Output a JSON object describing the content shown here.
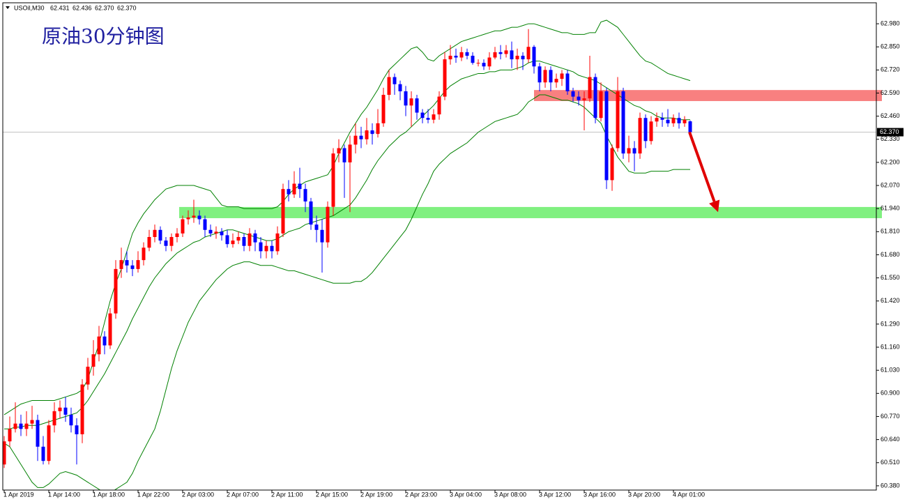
{
  "chart_data": {
    "type": "candlestick",
    "symbol": "USOil,M30",
    "quote": [
      "62.431",
      "62.436",
      "62.370",
      "62.370"
    ],
    "title": "原油30分钟图",
    "up_color": "#ff0000",
    "down_color": "#0000ff",
    "categories": [
      "1 Apr 2019",
      null,
      null,
      null,
      null,
      null,
      null,
      null,
      "1 Apr 14:00",
      null,
      null,
      null,
      null,
      null,
      null,
      null,
      "1 Apr 18:00",
      null,
      null,
      null,
      null,
      null,
      null,
      null,
      "1 Apr 22:00",
      null,
      null,
      null,
      null,
      null,
      null,
      null,
      "2 Apr 03:00",
      null,
      null,
      null,
      null,
      null,
      null,
      null,
      "2 Apr 07:00",
      null,
      null,
      null,
      null,
      null,
      null,
      null,
      "2 Apr 11:00",
      null,
      null,
      null,
      null,
      null,
      null,
      null,
      "2 Apr 15:00",
      null,
      null,
      null,
      null,
      null,
      null,
      null,
      "2 Apr 19:00",
      null,
      null,
      null,
      null,
      null,
      null,
      null,
      "2 Apr 23:00",
      null,
      null,
      null,
      null,
      null,
      null,
      null,
      "3 Apr 04:00",
      null,
      null,
      null,
      null,
      null,
      null,
      null,
      "3 Apr 08:00",
      null,
      null,
      null,
      null,
      null,
      null,
      null,
      "3 Apr 12:00",
      null,
      null,
      null,
      null,
      null,
      null,
      null,
      "3 Apr 16:00",
      null,
      null,
      null,
      null,
      null,
      null,
      null,
      "3 Apr 20:00",
      null,
      null,
      null,
      null,
      null,
      null,
      null,
      "4 Apr 01:00",
      null,
      null,
      null
    ],
    "open": [
      60.5,
      60.63,
      60.7,
      60.73,
      60.7,
      60.73,
      60.75,
      60.6,
      60.52,
      60.72,
      60.8,
      60.82,
      60.78,
      60.72,
      60.67,
      60.95,
      61.05,
      61.12,
      61.22,
      61.17,
      61.35,
      61.6,
      61.65,
      61.62,
      61.6,
      61.65,
      61.72,
      61.78,
      61.82,
      61.76,
      61.73,
      61.78,
      61.8,
      61.88,
      61.89,
      61.9,
      61.88,
      61.82,
      61.8,
      61.81,
      61.79,
      61.74,
      61.76,
      61.78,
      61.73,
      61.8,
      61.75,
      61.7,
      61.73,
      61.7,
      61.8,
      62.05,
      62.02,
      62.08,
      62.05,
      61.98,
      61.85,
      61.82,
      61.75,
      61.95,
      62.25,
      62.28,
      62.2,
      62.3,
      62.35,
      62.33,
      62.38,
      62.36,
      62.42,
      62.58,
      62.68,
      62.64,
      62.6,
      62.52,
      62.56,
      62.48,
      62.45,
      62.44,
      62.47,
      62.57,
      62.78,
      62.8,
      62.79,
      62.82,
      62.8,
      62.76,
      62.76,
      62.74,
      62.79,
      62.82,
      62.81,
      62.83,
      62.78,
      62.8,
      62.78,
      62.85,
      62.74,
      62.65,
      62.72,
      62.65,
      62.67,
      62.7,
      62.6,
      62.57,
      62.55,
      62.56,
      62.68,
      62.45,
      62.6,
      62.1,
      62.28,
      62.6,
      62.25,
      62.28,
      62.25,
      62.45,
      62.32,
      62.43,
      62.45,
      62.44,
      62.42,
      62.45,
      62.42,
      62.431
    ],
    "high": [
      60.66,
      60.77,
      60.85,
      60.78,
      60.8,
      60.83,
      60.78,
      60.66,
      60.75,
      60.85,
      60.86,
      60.88,
      60.82,
      60.76,
      60.98,
      61.1,
      61.2,
      61.28,
      61.25,
      61.38,
      61.65,
      61.72,
      61.7,
      61.65,
      61.7,
      61.75,
      61.82,
      61.85,
      61.84,
      61.78,
      61.8,
      61.83,
      61.9,
      61.93,
      61.99,
      61.93,
      61.9,
      61.85,
      61.84,
      61.83,
      61.82,
      61.8,
      61.81,
      61.8,
      61.83,
      61.82,
      61.78,
      61.76,
      61.76,
      61.84,
      62.08,
      62.1,
      62.15,
      62.17,
      62.08,
      62.0,
      61.9,
      61.88,
      61.98,
      62.28,
      62.33,
      62.3,
      62.35,
      62.42,
      62.4,
      62.45,
      62.42,
      62.5,
      62.62,
      62.72,
      62.7,
      62.66,
      62.63,
      62.6,
      62.58,
      62.5,
      62.5,
      62.5,
      62.6,
      62.82,
      62.86,
      62.84,
      62.85,
      62.84,
      62.82,
      62.78,
      62.78,
      62.82,
      62.85,
      62.86,
      62.86,
      62.88,
      62.84,
      62.82,
      62.95,
      62.86,
      62.76,
      62.74,
      62.74,
      62.7,
      62.72,
      62.72,
      62.62,
      62.6,
      62.6,
      62.8,
      62.7,
      62.65,
      62.62,
      62.3,
      62.68,
      62.62,
      62.35,
      62.32,
      62.48,
      62.47,
      62.46,
      62.48,
      62.48,
      62.5,
      62.47,
      62.48,
      62.46,
      62.436
    ],
    "low": [
      60.48,
      60.6,
      60.68,
      60.66,
      60.66,
      60.7,
      60.52,
      60.5,
      60.5,
      60.68,
      60.76,
      60.74,
      60.68,
      60.5,
      60.62,
      60.92,
      61.0,
      61.08,
      61.12,
      61.15,
      61.32,
      61.55,
      61.58,
      61.56,
      61.58,
      61.62,
      61.7,
      61.75,
      61.74,
      61.7,
      61.7,
      61.75,
      61.78,
      61.85,
      61.86,
      61.85,
      61.78,
      61.78,
      61.77,
      61.76,
      61.72,
      61.72,
      61.74,
      61.7,
      61.7,
      61.7,
      61.66,
      61.66,
      61.66,
      61.68,
      61.78,
      61.98,
      62.0,
      62.0,
      61.92,
      61.82,
      61.75,
      61.58,
      61.72,
      61.9,
      62.2,
      62.0,
      61.92,
      62.25,
      62.28,
      62.3,
      62.3,
      62.34,
      62.4,
      62.55,
      62.58,
      62.55,
      62.46,
      62.4,
      62.44,
      62.42,
      62.42,
      62.42,
      62.44,
      62.55,
      62.75,
      62.76,
      62.77,
      62.78,
      62.75,
      62.74,
      62.72,
      62.72,
      62.78,
      62.78,
      62.79,
      62.73,
      62.72,
      62.72,
      62.76,
      62.7,
      62.6,
      62.62,
      62.6,
      62.62,
      62.63,
      62.58,
      62.54,
      62.52,
      62.38,
      62.54,
      62.42,
      62.43,
      62.05,
      62.04,
      62.26,
      62.22,
      62.2,
      62.15,
      62.22,
      62.28,
      62.3,
      62.4,
      62.4,
      62.4,
      62.4,
      62.39,
      62.4,
      62.37
    ],
    "close": [
      60.63,
      60.7,
      60.73,
      60.7,
      60.73,
      60.75,
      60.6,
      60.52,
      60.72,
      60.8,
      60.82,
      60.78,
      60.72,
      60.67,
      60.95,
      61.05,
      61.12,
      61.22,
      61.17,
      61.35,
      61.6,
      61.65,
      61.62,
      61.6,
      61.65,
      61.72,
      61.78,
      61.82,
      61.76,
      61.73,
      61.78,
      61.8,
      61.88,
      61.89,
      61.9,
      61.88,
      61.82,
      61.8,
      61.81,
      61.79,
      61.74,
      61.76,
      61.78,
      61.73,
      61.8,
      61.75,
      61.7,
      61.73,
      61.7,
      61.8,
      62.05,
      62.02,
      62.08,
      62.05,
      61.98,
      61.85,
      61.82,
      61.75,
      61.95,
      62.25,
      62.28,
      62.2,
      62.3,
      62.35,
      62.33,
      62.38,
      62.36,
      62.42,
      62.58,
      62.68,
      62.64,
      62.6,
      62.52,
      62.56,
      62.48,
      62.45,
      62.44,
      62.47,
      62.57,
      62.78,
      62.8,
      62.79,
      62.82,
      62.8,
      62.76,
      62.76,
      62.74,
      62.79,
      62.82,
      62.81,
      62.83,
      62.78,
      62.8,
      62.78,
      62.85,
      62.74,
      62.65,
      62.72,
      62.65,
      62.67,
      62.7,
      62.6,
      62.57,
      62.55,
      62.56,
      62.68,
      62.45,
      62.6,
      62.1,
      62.28,
      62.6,
      62.25,
      62.28,
      62.25,
      62.45,
      62.32,
      62.43,
      62.45,
      62.44,
      62.42,
      62.45,
      62.42,
      62.44,
      62.37
    ],
    "overlays": [
      {
        "color": "#008000",
        "values": [
          60.78,
          60.8,
          60.82,
          60.84,
          60.85,
          60.86,
          60.86,
          60.86,
          60.86,
          60.86,
          60.87,
          60.88,
          60.89,
          60.9,
          60.92,
          60.98,
          61.08,
          61.18,
          61.3,
          61.42,
          61.52,
          61.6,
          61.7,
          61.8,
          61.86,
          61.91,
          61.95,
          61.99,
          62.02,
          62.05,
          62.06,
          62.07,
          62.07,
          62.07,
          62.07,
          62.06,
          62.05,
          62.04,
          62.0,
          61.96,
          61.95,
          61.95,
          61.95,
          61.94,
          61.94,
          61.94,
          61.94,
          61.94,
          61.94,
          61.95,
          61.98,
          62.02,
          62.05,
          62.07,
          62.09,
          62.1,
          62.11,
          62.12,
          62.13,
          62.18,
          62.25,
          62.31,
          62.37,
          62.42,
          62.47,
          62.51,
          62.56,
          62.61,
          62.67,
          62.72,
          62.75,
          62.78,
          62.81,
          62.84,
          62.85,
          62.82,
          62.78,
          62.77,
          62.8,
          62.82,
          62.84,
          62.86,
          62.88,
          62.89,
          62.9,
          62.91,
          62.92,
          62.93,
          62.94,
          62.94,
          62.95,
          62.96,
          62.96,
          62.97,
          62.98,
          62.98,
          62.97,
          62.96,
          62.95,
          62.94,
          62.93,
          62.93,
          62.92,
          62.92,
          62.92,
          62.93,
          62.93,
          62.99,
          63.0,
          62.98,
          62.96,
          62.92,
          62.88,
          62.84,
          62.8,
          62.77,
          62.76,
          62.74,
          62.72,
          62.7,
          62.69,
          62.68,
          62.67,
          62.66
        ]
      },
      {
        "color": "#008000",
        "values": [
          60.7,
          60.7,
          60.71,
          60.71,
          60.72,
          60.72,
          60.72,
          60.73,
          60.74,
          60.75,
          60.76,
          60.77,
          60.78,
          60.79,
          60.82,
          60.86,
          60.91,
          60.96,
          61.01,
          61.07,
          61.13,
          61.19,
          61.25,
          61.32,
          61.38,
          61.44,
          61.5,
          61.55,
          61.59,
          61.63,
          61.66,
          61.69,
          61.71,
          61.73,
          61.75,
          61.76,
          61.78,
          61.79,
          61.8,
          61.81,
          61.82,
          61.82,
          61.81,
          61.8,
          61.79,
          61.78,
          61.77,
          61.76,
          61.76,
          61.77,
          61.79,
          61.81,
          61.82,
          61.83,
          61.85,
          61.86,
          61.87,
          61.88,
          61.89,
          61.9,
          61.92,
          61.94,
          61.96,
          62.0,
          62.05,
          62.1,
          62.16,
          62.21,
          62.25,
          62.29,
          62.32,
          62.35,
          62.37,
          62.4,
          62.43,
          62.46,
          62.49,
          62.52,
          62.56,
          62.6,
          62.63,
          62.65,
          62.67,
          62.68,
          62.69,
          62.7,
          62.7,
          62.71,
          62.71,
          62.72,
          62.72,
          62.72,
          62.73,
          62.74,
          62.76,
          62.77,
          62.77,
          62.76,
          62.75,
          62.74,
          62.73,
          62.72,
          62.71,
          62.69,
          62.68,
          62.67,
          62.66,
          62.64,
          62.62,
          62.6,
          62.58,
          62.56,
          62.54,
          62.52,
          62.51,
          62.49,
          62.48,
          62.46,
          62.45,
          62.45,
          62.45,
          62.44,
          62.44,
          62.44
        ]
      },
      {
        "color": "#008000",
        "values": [
          60.62,
          60.6,
          60.55,
          60.5,
          60.45,
          60.4,
          60.37,
          60.37,
          60.39,
          60.42,
          60.45,
          60.46,
          60.45,
          60.44,
          60.42,
          60.4,
          60.38,
          60.36,
          60.34,
          60.34,
          60.36,
          60.38,
          60.4,
          60.45,
          60.52,
          60.58,
          60.64,
          60.7,
          60.8,
          60.92,
          61.04,
          61.14,
          61.22,
          61.3,
          61.36,
          61.42,
          61.46,
          61.5,
          61.54,
          61.57,
          61.6,
          61.62,
          61.63,
          61.64,
          61.64,
          61.63,
          61.62,
          61.62,
          61.62,
          61.61,
          61.6,
          61.59,
          61.59,
          61.58,
          61.57,
          61.56,
          61.55,
          61.54,
          61.53,
          61.52,
          61.52,
          61.52,
          61.52,
          61.53,
          61.53,
          61.55,
          61.58,
          61.62,
          61.66,
          61.7,
          61.74,
          61.78,
          61.82,
          61.88,
          61.95,
          62.02,
          62.08,
          62.15,
          62.19,
          62.22,
          62.25,
          62.27,
          62.29,
          62.31,
          62.34,
          62.37,
          62.39,
          62.41,
          62.43,
          62.44,
          62.45,
          62.46,
          62.47,
          62.5,
          62.54,
          62.56,
          62.58,
          62.58,
          62.57,
          62.56,
          62.55,
          62.55,
          62.54,
          62.53,
          62.51,
          62.48,
          62.45,
          62.42,
          62.35,
          62.29,
          62.23,
          62.19,
          62.15,
          62.14,
          62.14,
          62.14,
          62.15,
          62.15,
          62.15,
          62.15,
          62.16,
          62.16,
          62.16,
          62.16
        ]
      }
    ],
    "zones": [
      {
        "from": 62.607,
        "to": 62.545,
        "color": "#f88080"
      },
      {
        "from": 61.949,
        "to": 61.886,
        "color": "#80f080"
      }
    ],
    "arrow": {
      "from": 62.37,
      "to": 61.92,
      "color": "#e00000"
    },
    "current_price": {
      "value": 62.37,
      "label": "62.370"
    },
    "ylim": [
      60.356,
      63.098
    ],
    "yticks": [
      {
        "value": 62.98,
        "label": "62.980"
      },
      {
        "value": 62.85,
        "label": "62.850"
      },
      {
        "value": 62.72,
        "label": "62.720"
      },
      {
        "value": 62.59,
        "label": "62.590"
      },
      {
        "value": 62.46,
        "label": "62.460"
      },
      {
        "value": 62.33,
        "label": "62.330"
      },
      {
        "value": 62.2,
        "label": "62.200"
      },
      {
        "value": 62.07,
        "label": "62.070"
      },
      {
        "value": 61.94,
        "label": "61.940"
      },
      {
        "value": 61.81,
        "label": "61.810"
      },
      {
        "value": 61.68,
        "label": "61.680"
      },
      {
        "value": 61.55,
        "label": "61.550"
      },
      {
        "value": 61.42,
        "label": "61.420"
      },
      {
        "value": 61.29,
        "label": "61.290"
      },
      {
        "value": 61.16,
        "label": "61.160"
      },
      {
        "value": 61.03,
        "label": "61.030"
      },
      {
        "value": 60.9,
        "label": "60.900"
      },
      {
        "value": 60.77,
        "label": "60.770"
      },
      {
        "value": 60.64,
        "label": "60.640"
      },
      {
        "value": 60.51,
        "label": "60.510"
      },
      {
        "value": 60.38,
        "label": "60.380"
      }
    ]
  }
}
